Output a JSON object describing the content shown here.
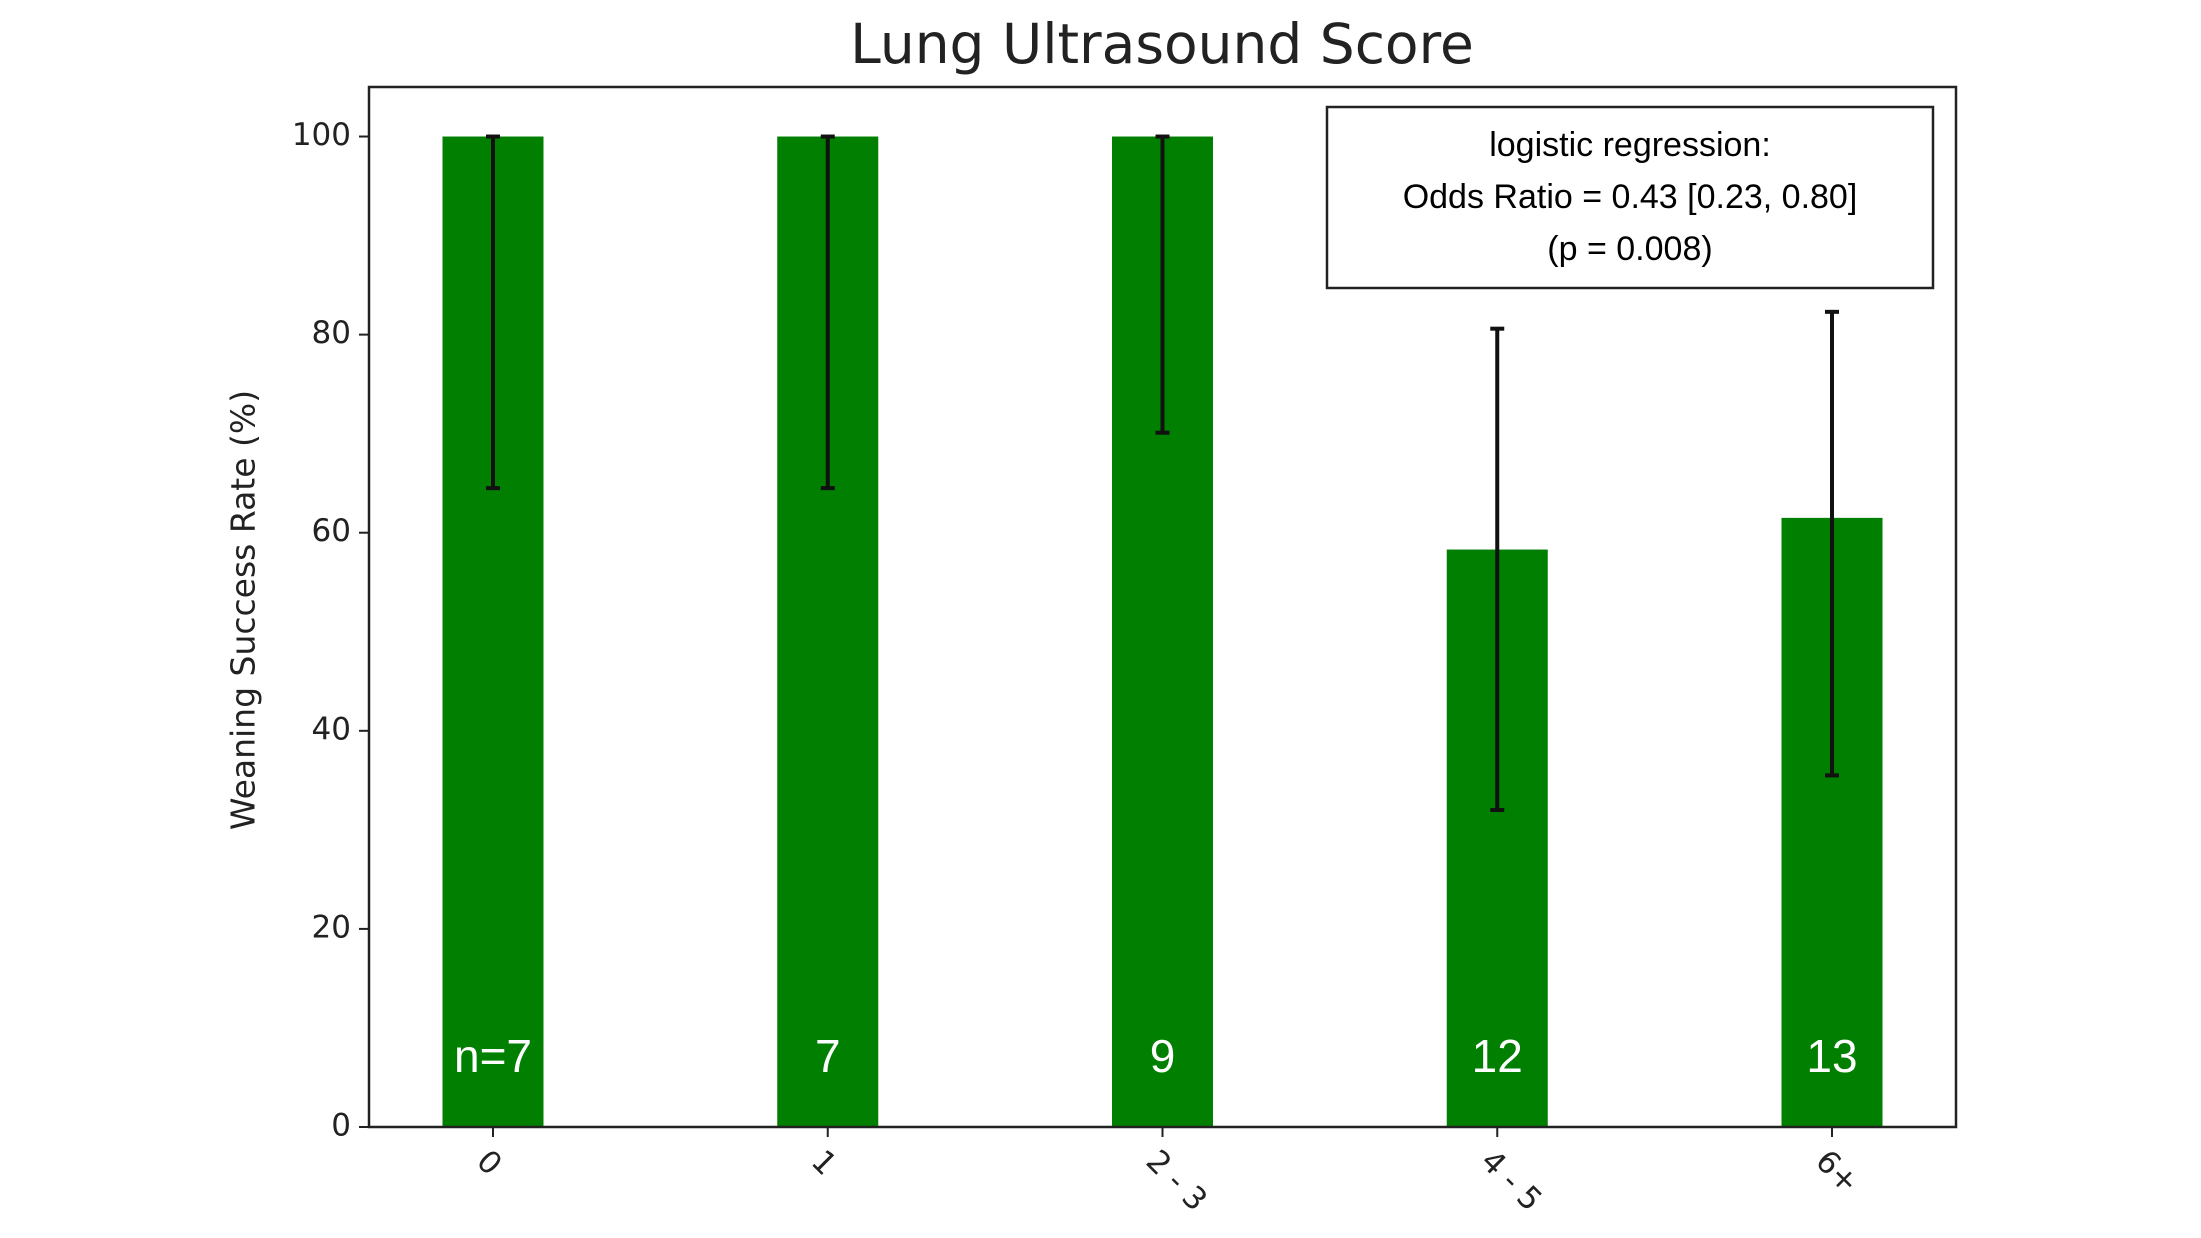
{
  "chart_data": {
    "type": "bar",
    "title": "Lung Ultrasound Score",
    "y_label": "Weaning Success Rate (%)",
    "categories": [
      "0",
      "1",
      "2 - 3",
      "4 - 5",
      "6+"
    ],
    "values": [
      100,
      100,
      100,
      58.3,
      61.5
    ],
    "ci_low": [
      64.5,
      64.5,
      70.1,
      32,
      35.5
    ],
    "ci_high": [
      100,
      100,
      100,
      80.6,
      82.3
    ],
    "bar_labels": [
      "n=7",
      "7",
      "9",
      "12",
      "13"
    ],
    "color": "#007f00",
    "ylim": [
      0,
      105
    ],
    "yticks": [
      0,
      20,
      40,
      60,
      80,
      100
    ],
    "annotation": [
      "logistic regression:",
      "Odds Ratio =  0.43 [0.23, 0.80]",
      "(p = 0.008)"
    ]
  }
}
